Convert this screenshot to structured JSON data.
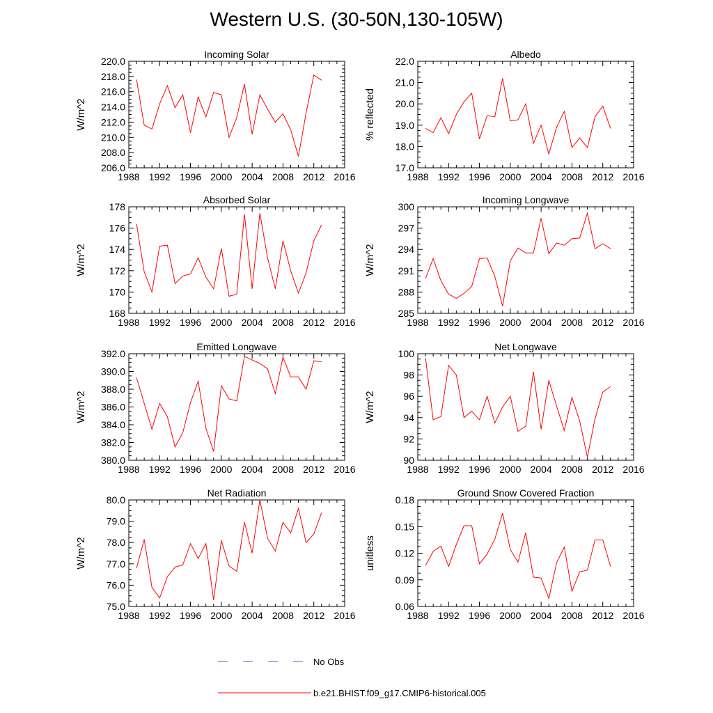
{
  "page_title": "Western U.S. (30-50N,130-105W)",
  "legend": {
    "obs_label": "No Obs",
    "obs_color": "#4a5bd0",
    "model_label": "b.e21.BHIST.f09_g17.CMIP6-historical.005",
    "model_color": "#ff0000"
  },
  "chart_data": [
    {
      "type": "line",
      "title": "Incoming Solar",
      "ylabel": "W/m^2",
      "xlim": [
        1988,
        2016
      ],
      "ylim": [
        206,
        220
      ],
      "xticks": [
        1988,
        1992,
        1996,
        2000,
        2004,
        2008,
        2012,
        2016
      ],
      "xtick_labels": [
        "1988",
        "1992",
        "1996",
        "2000",
        "2004",
        "2008",
        "2012",
        "2016"
      ],
      "yticks": [
        206,
        208,
        210,
        212,
        214,
        216,
        218,
        220
      ],
      "ytick_labels": [
        "206.0",
        "208.0",
        "210.0",
        "212.0",
        "214.0",
        "216.0",
        "218.0",
        "220.0"
      ],
      "x": [
        1989,
        1990,
        1991,
        1992,
        1993,
        1994,
        1995,
        1996,
        1997,
        1998,
        1999,
        2000,
        2001,
        2002,
        2003,
        2004,
        2005,
        2006,
        2007,
        2008,
        2009,
        2010,
        2011,
        2012,
        2013
      ],
      "series": [
        {
          "name": "b.e21.BHIST.f09_g17.CMIP6-historical.005",
          "values": [
            217.6,
            211.6,
            211.1,
            214.4,
            216.8,
            213.9,
            215.6,
            210.6,
            215.3,
            212.7,
            215.9,
            215.6,
            210.0,
            212.6,
            217.0,
            210.4,
            215.6,
            213.7,
            212.0,
            213.1,
            211.0,
            207.5,
            213.2,
            218.2,
            217.5
          ]
        }
      ]
    },
    {
      "type": "line",
      "title": "Albedo",
      "ylabel": "% reflected",
      "xlim": [
        1988,
        2016
      ],
      "ylim": [
        17,
        22
      ],
      "xticks": [
        1988,
        1992,
        1996,
        2000,
        2004,
        2008,
        2012,
        2016
      ],
      "xtick_labels": [
        "1988",
        "1992",
        "1996",
        "2000",
        "2004",
        "2008",
        "2012",
        "2016"
      ],
      "yticks": [
        17,
        18,
        19,
        20,
        21,
        22
      ],
      "ytick_labels": [
        "17.0",
        "18.0",
        "19.0",
        "20.0",
        "21.0",
        "22.0"
      ],
      "x": [
        1989,
        1990,
        1991,
        1992,
        1993,
        1994,
        1995,
        1996,
        1997,
        1998,
        1999,
        2000,
        2001,
        2002,
        2003,
        2004,
        2005,
        2006,
        2007,
        2008,
        2009,
        2010,
        2011,
        2012,
        2013
      ],
      "series": [
        {
          "name": "b.e21.BHIST.f09_g17.CMIP6-historical.005",
          "values": [
            18.85,
            18.65,
            19.35,
            18.6,
            19.5,
            20.1,
            20.5,
            18.35,
            19.45,
            19.4,
            21.2,
            19.2,
            19.25,
            20.0,
            18.15,
            19.0,
            17.65,
            18.9,
            19.65,
            17.95,
            18.4,
            17.95,
            19.4,
            19.9,
            18.85
          ]
        }
      ]
    },
    {
      "type": "line",
      "title": "Absorbed Solar",
      "ylabel": "W/m^2",
      "xlim": [
        1988,
        2016
      ],
      "ylim": [
        168,
        178
      ],
      "xticks": [
        1988,
        1992,
        1996,
        2000,
        2004,
        2008,
        2012,
        2016
      ],
      "xtick_labels": [
        "1988",
        "1992",
        "1996",
        "2000",
        "2004",
        "2008",
        "2012",
        "2016"
      ],
      "yticks": [
        168,
        170,
        172,
        174,
        176,
        178
      ],
      "ytick_labels": [
        "168",
        "170",
        "172",
        "174",
        "176",
        "178"
      ],
      "x": [
        1989,
        1990,
        1991,
        1992,
        1993,
        1994,
        1995,
        1996,
        1997,
        1998,
        1999,
        2000,
        2001,
        2002,
        2003,
        2004,
        2005,
        2006,
        2007,
        2008,
        2009,
        2010,
        2011,
        2012,
        2013
      ],
      "series": [
        {
          "name": "b.e21.BHIST.f09_g17.CMIP6-historical.005",
          "values": [
            176.4,
            171.9,
            170.0,
            174.3,
            174.4,
            170.8,
            171.5,
            171.7,
            173.2,
            171.4,
            170.3,
            174.1,
            169.6,
            169.8,
            177.3,
            170.3,
            177.4,
            173.2,
            170.3,
            174.8,
            172.0,
            169.9,
            171.8,
            174.8,
            176.3
          ]
        }
      ]
    },
    {
      "type": "line",
      "title": "Incoming Longwave",
      "ylabel": "W/m^2",
      "xlim": [
        1988,
        2016
      ],
      "ylim": [
        285,
        300
      ],
      "xticks": [
        1988,
        1992,
        1996,
        2000,
        2004,
        2008,
        2012,
        2016
      ],
      "xtick_labels": [
        "1988",
        "1992",
        "1996",
        "2000",
        "2004",
        "2008",
        "2012",
        "2016"
      ],
      "yticks": [
        285,
        288,
        291,
        294,
        297,
        300
      ],
      "ytick_labels": [
        "285",
        "288",
        "291",
        "294",
        "297",
        "300"
      ],
      "x": [
        1989,
        1990,
        1991,
        1992,
        1993,
        1994,
        1995,
        1996,
        1997,
        1998,
        1999,
        2000,
        2001,
        2002,
        2003,
        2004,
        2005,
        2006,
        2007,
        2008,
        2009,
        2010,
        2011,
        2012,
        2013
      ],
      "series": [
        {
          "name": "b.e21.BHIST.f09_g17.CMIP6-historical.005",
          "values": [
            289.9,
            292.7,
            289.6,
            287.7,
            287.1,
            287.8,
            288.8,
            292.7,
            292.8,
            290.2,
            286.0,
            292.4,
            294.2,
            293.5,
            293.5,
            298.4,
            293.4,
            294.9,
            294.6,
            295.5,
            295.6,
            299.1,
            294.1,
            294.8,
            294.1
          ]
        }
      ]
    },
    {
      "type": "line",
      "title": "Emitted Longwave",
      "ylabel": "W/m^2",
      "xlim": [
        1988,
        2016
      ],
      "ylim": [
        380,
        392
      ],
      "xticks": [
        1988,
        1992,
        1996,
        2000,
        2004,
        2008,
        2012,
        2016
      ],
      "xtick_labels": [
        "1988",
        "1992",
        "1996",
        "2000",
        "2004",
        "2008",
        "2012",
        "2016"
      ],
      "yticks": [
        380,
        382,
        384,
        386,
        388,
        390,
        392
      ],
      "ytick_labels": [
        "380.0",
        "382.0",
        "384.0",
        "386.0",
        "388.0",
        "390.0",
        "392.0"
      ],
      "x": [
        1989,
        1990,
        1991,
        1992,
        1993,
        1994,
        1995,
        1996,
        1997,
        1998,
        1999,
        2000,
        2001,
        2002,
        2003,
        2004,
        2005,
        2006,
        2007,
        2008,
        2009,
        2010,
        2011,
        2012,
        2013
      ],
      "series": [
        {
          "name": "b.e21.BHIST.f09_g17.CMIP6-historical.005",
          "values": [
            389.3,
            386.4,
            383.5,
            386.4,
            384.9,
            381.5,
            383.1,
            386.5,
            388.9,
            383.6,
            381.0,
            388.4,
            386.9,
            386.7,
            391.7,
            391.3,
            390.9,
            390.3,
            387.5,
            391.6,
            389.4,
            389.4,
            388.0,
            391.2,
            391.1
          ]
        }
      ]
    },
    {
      "type": "line",
      "title": "Net Longwave",
      "ylabel": "W/m^2",
      "xlim": [
        1988,
        2016
      ],
      "ylim": [
        90,
        100
      ],
      "xticks": [
        1988,
        1992,
        1996,
        2000,
        2004,
        2008,
        2012,
        2016
      ],
      "xtick_labels": [
        "1988",
        "1992",
        "1996",
        "2000",
        "2004",
        "2008",
        "2012",
        "2016"
      ],
      "yticks": [
        90,
        92,
        94,
        96,
        98,
        100
      ],
      "ytick_labels": [
        "90",
        "92",
        "94",
        "96",
        "98",
        "100"
      ],
      "x": [
        1989,
        1990,
        1991,
        1992,
        1993,
        1994,
        1995,
        1996,
        1997,
        1998,
        1999,
        2000,
        2001,
        2002,
        2003,
        2004,
        2005,
        2006,
        2007,
        2008,
        2009,
        2010,
        2011,
        2012,
        2013
      ],
      "series": [
        {
          "name": "b.e21.BHIST.f09_g17.CMIP6-historical.005",
          "values": [
            99.6,
            93.8,
            94.1,
            98.9,
            98.0,
            94.0,
            94.6,
            93.8,
            96.0,
            93.5,
            95.0,
            96.0,
            92.7,
            93.2,
            98.3,
            92.9,
            97.5,
            95.1,
            92.8,
            95.9,
            93.7,
            90.3,
            93.9,
            96.4,
            96.9
          ]
        }
      ]
    },
    {
      "type": "line",
      "title": "Net Radiation",
      "ylabel": "W/m^2",
      "xlim": [
        1988,
        2016
      ],
      "ylim": [
        75,
        80
      ],
      "xticks": [
        1988,
        1992,
        1996,
        2000,
        2004,
        2008,
        2012,
        2016
      ],
      "xtick_labels": [
        "1988",
        "1992",
        "1996",
        "2000",
        "2004",
        "2008",
        "2012",
        "2016"
      ],
      "yticks": [
        75,
        76,
        77,
        78,
        79,
        80
      ],
      "ytick_labels": [
        "75.0",
        "76.0",
        "77.0",
        "78.0",
        "79.0",
        "80.0"
      ],
      "x": [
        1989,
        1990,
        1991,
        1992,
        1993,
        1994,
        1995,
        1996,
        1997,
        1998,
        1999,
        2000,
        2001,
        2002,
        2003,
        2004,
        2005,
        2006,
        2007,
        2008,
        2009,
        2010,
        2011,
        2012,
        2013
      ],
      "series": [
        {
          "name": "b.e21.BHIST.f09_g17.CMIP6-historical.005",
          "values": [
            76.8,
            78.15,
            75.9,
            75.4,
            76.4,
            76.85,
            76.95,
            77.95,
            77.25,
            77.95,
            75.3,
            78.1,
            76.9,
            76.65,
            78.95,
            77.5,
            80.0,
            78.2,
            77.6,
            78.95,
            78.45,
            79.6,
            78.0,
            78.4,
            79.4
          ]
        }
      ]
    },
    {
      "type": "line",
      "title": "Ground Snow Covered Fraction",
      "ylabel": "unitless",
      "xlim": [
        1988,
        2016
      ],
      "ylim": [
        0.06,
        0.18
      ],
      "xticks": [
        1988,
        1992,
        1996,
        2000,
        2004,
        2008,
        2012,
        2016
      ],
      "xtick_labels": [
        "1988",
        "1992",
        "1996",
        "2000",
        "2004",
        "2008",
        "2012",
        "2016"
      ],
      "yticks": [
        0.06,
        0.09,
        0.12,
        0.15,
        0.18
      ],
      "ytick_labels": [
        "0.06",
        "0.09",
        "0.12",
        "0.15",
        "0.18"
      ],
      "x": [
        1989,
        1990,
        1991,
        1992,
        1993,
        1994,
        1995,
        1996,
        1997,
        1998,
        1999,
        2000,
        2001,
        2002,
        2003,
        2004,
        2005,
        2006,
        2007,
        2008,
        2009,
        2010,
        2011,
        2012,
        2013
      ],
      "series": [
        {
          "name": "b.e21.BHIST.f09_g17.CMIP6-historical.005",
          "values": [
            0.106,
            0.122,
            0.128,
            0.105,
            0.13,
            0.151,
            0.151,
            0.108,
            0.119,
            0.136,
            0.165,
            0.124,
            0.11,
            0.143,
            0.093,
            0.092,
            0.069,
            0.109,
            0.127,
            0.077,
            0.099,
            0.101,
            0.135,
            0.135,
            0.105
          ]
        }
      ]
    }
  ]
}
